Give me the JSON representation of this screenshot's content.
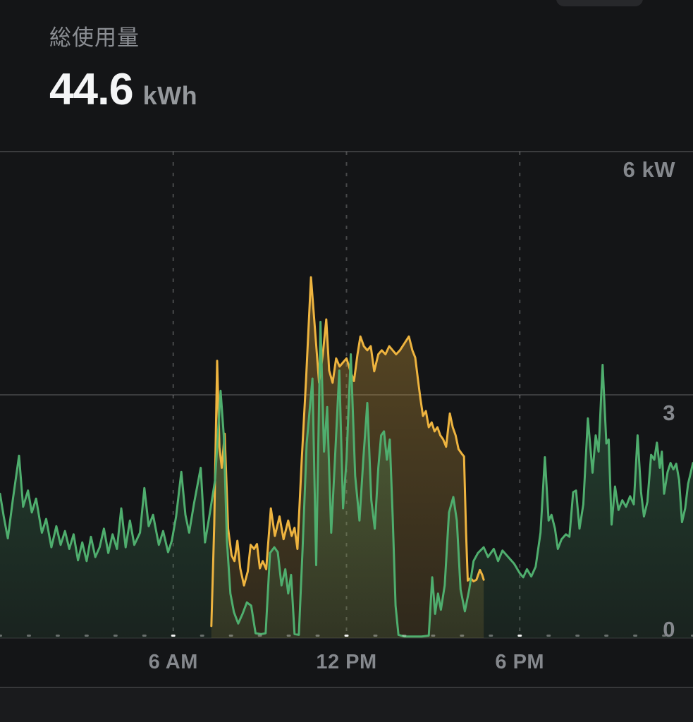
{
  "header": {
    "title": "総使用量",
    "value": "44.6",
    "unit": "kWh"
  },
  "style": {
    "background": "#141517",
    "footer_background": "#1a1b1d",
    "label_color": "#85888d",
    "grid_solid_color": "rgba(255,255,255,0.17)",
    "grid_zero_color": "rgba(255,255,255,0.08)",
    "grid_dashed_color": "rgba(255,255,255,0.22)",
    "tick_minor_color": "rgba(255,255,255,0.35)",
    "tick_major_color": "rgba(255,255,255,0.95)"
  },
  "chart_data": {
    "type": "area",
    "title": "総使用量",
    "total_value": "44.6 kWh",
    "xlabel": "",
    "ylabel": "kW",
    "x_axis": {
      "range_hours": [
        0,
        24
      ],
      "minor_tick_every_hours": 1,
      "tick_labels": [
        {
          "hour": 6,
          "label": "6 AM"
        },
        {
          "hour": 12,
          "label": "12 PM"
        },
        {
          "hour": 18,
          "label": "6 PM"
        }
      ]
    },
    "y_axis": {
      "unit": "kW",
      "range": [
        0,
        6
      ],
      "ticks": [
        {
          "value": 6,
          "label": "6 kW"
        },
        {
          "value": 3,
          "label": "3"
        },
        {
          "value": 0,
          "label": "0"
        }
      ]
    },
    "grid": true,
    "legend": "none",
    "series": [
      {
        "id": "yellow",
        "name": "yellow-production-series",
        "color": "#eeb43f",
        "points": [
          [
            7.32,
            0.15
          ],
          [
            7.42,
            1.4
          ],
          [
            7.52,
            3.42
          ],
          [
            7.6,
            2.35
          ],
          [
            7.68,
            2.1
          ],
          [
            7.78,
            2.52
          ],
          [
            7.9,
            1.35
          ],
          [
            8.02,
            1.02
          ],
          [
            8.12,
            0.95
          ],
          [
            8.22,
            1.2
          ],
          [
            8.32,
            0.86
          ],
          [
            8.45,
            0.65
          ],
          [
            8.58,
            0.82
          ],
          [
            8.68,
            1.15
          ],
          [
            8.8,
            1.1
          ],
          [
            8.9,
            1.16
          ],
          [
            9.0,
            0.86
          ],
          [
            9.1,
            0.95
          ],
          [
            9.22,
            0.85
          ],
          [
            9.38,
            1.6
          ],
          [
            9.52,
            1.26
          ],
          [
            9.68,
            1.5
          ],
          [
            9.82,
            1.22
          ],
          [
            9.98,
            1.45
          ],
          [
            10.1,
            1.26
          ],
          [
            10.2,
            1.36
          ],
          [
            10.3,
            1.1
          ],
          [
            10.45,
            2.2
          ],
          [
            10.6,
            3.2
          ],
          [
            10.77,
            4.45
          ],
          [
            10.92,
            3.75
          ],
          [
            11.05,
            3.15
          ],
          [
            11.18,
            3.5
          ],
          [
            11.3,
            3.93
          ],
          [
            11.4,
            3.3
          ],
          [
            11.52,
            3.15
          ],
          [
            11.64,
            3.45
          ],
          [
            11.76,
            3.35
          ],
          [
            11.88,
            3.4
          ],
          [
            12.0,
            3.45
          ],
          [
            12.13,
            3.3
          ],
          [
            12.26,
            3.17
          ],
          [
            12.38,
            3.5
          ],
          [
            12.48,
            3.72
          ],
          [
            12.6,
            3.6
          ],
          [
            12.72,
            3.55
          ],
          [
            12.84,
            3.6
          ],
          [
            12.96,
            3.29
          ],
          [
            13.1,
            3.5
          ],
          [
            13.22,
            3.55
          ],
          [
            13.35,
            3.5
          ],
          [
            13.48,
            3.6
          ],
          [
            13.6,
            3.55
          ],
          [
            13.72,
            3.5
          ],
          [
            13.85,
            3.55
          ],
          [
            13.98,
            3.62
          ],
          [
            14.16,
            3.72
          ],
          [
            14.28,
            3.55
          ],
          [
            14.38,
            3.46
          ],
          [
            14.47,
            3.2
          ],
          [
            14.56,
            2.95
          ],
          [
            14.65,
            2.74
          ],
          [
            14.75,
            2.8
          ],
          [
            14.85,
            2.6
          ],
          [
            14.95,
            2.66
          ],
          [
            15.05,
            2.55
          ],
          [
            15.15,
            2.6
          ],
          [
            15.25,
            2.5
          ],
          [
            15.35,
            2.45
          ],
          [
            15.45,
            2.36
          ],
          [
            15.58,
            2.77
          ],
          [
            15.68,
            2.6
          ],
          [
            15.78,
            2.5
          ],
          [
            15.88,
            2.33
          ],
          [
            15.98,
            2.28
          ],
          [
            16.07,
            2.24
          ],
          [
            16.14,
            1.3
          ],
          [
            16.2,
            0.71
          ],
          [
            16.3,
            0.74
          ],
          [
            16.4,
            0.7
          ],
          [
            16.5,
            0.72
          ],
          [
            16.62,
            0.84
          ],
          [
            16.7,
            0.78
          ],
          [
            16.75,
            0.72
          ]
        ]
      },
      {
        "id": "green",
        "name": "green-usage-series",
        "color": "#4fae6e",
        "points": [
          [
            0,
            1.78
          ],
          [
            0.13,
            1.5
          ],
          [
            0.27,
            1.23
          ],
          [
            0.45,
            1.72
          ],
          [
            0.66,
            2.25
          ],
          [
            0.8,
            1.62
          ],
          [
            0.97,
            1.82
          ],
          [
            1.1,
            1.55
          ],
          [
            1.25,
            1.72
          ],
          [
            1.45,
            1.3
          ],
          [
            1.6,
            1.47
          ],
          [
            1.78,
            1.12
          ],
          [
            1.95,
            1.38
          ],
          [
            2.1,
            1.15
          ],
          [
            2.25,
            1.32
          ],
          [
            2.4,
            1.1
          ],
          [
            2.55,
            1.28
          ],
          [
            2.7,
            0.96
          ],
          [
            2.85,
            1.18
          ],
          [
            3.0,
            0.95
          ],
          [
            3.15,
            1.25
          ],
          [
            3.3,
            1.0
          ],
          [
            3.45,
            1.12
          ],
          [
            3.6,
            1.35
          ],
          [
            3.75,
            1.05
          ],
          [
            3.9,
            1.28
          ],
          [
            4.05,
            1.1
          ],
          [
            4.2,
            1.6
          ],
          [
            4.35,
            1.12
          ],
          [
            4.5,
            1.45
          ],
          [
            4.65,
            1.15
          ],
          [
            4.85,
            1.3
          ],
          [
            5.0,
            1.85
          ],
          [
            5.15,
            1.38
          ],
          [
            5.3,
            1.52
          ],
          [
            5.5,
            1.15
          ],
          [
            5.65,
            1.32
          ],
          [
            5.82,
            1.06
          ],
          [
            5.95,
            1.2
          ],
          [
            6.1,
            1.5
          ],
          [
            6.28,
            2.05
          ],
          [
            6.42,
            1.52
          ],
          [
            6.55,
            1.3
          ],
          [
            6.72,
            1.66
          ],
          [
            6.95,
            2.1
          ],
          [
            7.1,
            1.18
          ],
          [
            7.25,
            1.5
          ],
          [
            7.45,
            1.95
          ],
          [
            7.64,
            3.05
          ],
          [
            7.75,
            2.5
          ],
          [
            7.86,
            1.2
          ],
          [
            7.98,
            0.55
          ],
          [
            8.1,
            0.32
          ],
          [
            8.25,
            0.18
          ],
          [
            8.4,
            0.3
          ],
          [
            8.55,
            0.44
          ],
          [
            8.7,
            0.4
          ],
          [
            8.85,
            0.06
          ],
          [
            9.05,
            0.05
          ],
          [
            9.2,
            0.06
          ],
          [
            9.35,
            1.05
          ],
          [
            9.5,
            1.12
          ],
          [
            9.62,
            1.06
          ],
          [
            9.75,
            0.65
          ],
          [
            9.88,
            0.85
          ],
          [
            9.98,
            0.55
          ],
          [
            10.08,
            0.78
          ],
          [
            10.2,
            0.05
          ],
          [
            10.35,
            0.04
          ],
          [
            10.48,
            1.1
          ],
          [
            10.62,
            2.4
          ],
          [
            10.82,
            3.2
          ],
          [
            10.95,
            0.9
          ],
          [
            11.1,
            3.9
          ],
          [
            11.22,
            2.3
          ],
          [
            11.33,
            2.85
          ],
          [
            11.47,
            1.3
          ],
          [
            11.6,
            2.2
          ],
          [
            11.75,
            3.3
          ],
          [
            11.88,
            1.6
          ],
          [
            12.0,
            2.2
          ],
          [
            12.15,
            3.5
          ],
          [
            12.3,
            2.0
          ],
          [
            12.45,
            1.45
          ],
          [
            12.58,
            2.2
          ],
          [
            12.72,
            2.9
          ],
          [
            12.86,
            1.7
          ],
          [
            12.98,
            1.35
          ],
          [
            13.1,
            2.1
          ],
          [
            13.2,
            2.5
          ],
          [
            13.3,
            2.55
          ],
          [
            13.4,
            2.2
          ],
          [
            13.5,
            2.45
          ],
          [
            13.6,
            1.5
          ],
          [
            13.7,
            0.4
          ],
          [
            13.8,
            0.04
          ],
          [
            14.0,
            0.02
          ],
          [
            14.3,
            0.02
          ],
          [
            14.6,
            0.02
          ],
          [
            14.85,
            0.03
          ],
          [
            14.97,
            0.75
          ],
          [
            15.07,
            0.3
          ],
          [
            15.17,
            0.55
          ],
          [
            15.27,
            0.35
          ],
          [
            15.4,
            0.65
          ],
          [
            15.55,
            1.55
          ],
          [
            15.7,
            1.74
          ],
          [
            15.82,
            1.45
          ],
          [
            15.95,
            0.6
          ],
          [
            16.1,
            0.33
          ],
          [
            16.25,
            0.6
          ],
          [
            16.4,
            0.95
          ],
          [
            16.55,
            1.05
          ],
          [
            16.75,
            1.12
          ],
          [
            16.9,
            1.0
          ],
          [
            17.1,
            1.1
          ],
          [
            17.25,
            0.95
          ],
          [
            17.4,
            1.08
          ],
          [
            17.6,
            1.0
          ],
          [
            17.8,
            0.92
          ],
          [
            18.0,
            0.8
          ],
          [
            18.12,
            0.75
          ],
          [
            18.25,
            0.85
          ],
          [
            18.4,
            0.76
          ],
          [
            18.55,
            0.88
          ],
          [
            18.72,
            1.3
          ],
          [
            18.87,
            2.23
          ],
          [
            19.0,
            1.45
          ],
          [
            19.1,
            1.52
          ],
          [
            19.22,
            1.35
          ],
          [
            19.32,
            1.1
          ],
          [
            19.45,
            1.22
          ],
          [
            19.6,
            1.28
          ],
          [
            19.72,
            1.25
          ],
          [
            19.85,
            1.8
          ],
          [
            19.95,
            1.82
          ],
          [
            20.07,
            1.35
          ],
          [
            20.2,
            1.65
          ],
          [
            20.36,
            2.71
          ],
          [
            20.52,
            2.04
          ],
          [
            20.63,
            2.5
          ],
          [
            20.73,
            2.3
          ],
          [
            20.87,
            3.37
          ],
          [
            21.0,
            2.4
          ],
          [
            21.08,
            2.45
          ],
          [
            21.18,
            1.4
          ],
          [
            21.3,
            1.87
          ],
          [
            21.42,
            1.58
          ],
          [
            21.55,
            1.7
          ],
          [
            21.68,
            1.62
          ],
          [
            21.82,
            1.75
          ],
          [
            21.95,
            1.65
          ],
          [
            22.08,
            2.5
          ],
          [
            22.2,
            1.8
          ],
          [
            22.3,
            1.5
          ],
          [
            22.42,
            1.68
          ],
          [
            22.55,
            2.26
          ],
          [
            22.66,
            2.2
          ],
          [
            22.75,
            2.41
          ],
          [
            22.85,
            2.1
          ],
          [
            22.92,
            2.3
          ],
          [
            23.0,
            1.78
          ],
          [
            23.12,
            2.05
          ],
          [
            23.22,
            2.16
          ],
          [
            23.32,
            2.08
          ],
          [
            23.42,
            2.15
          ],
          [
            23.52,
            1.95
          ],
          [
            23.62,
            1.43
          ],
          [
            23.73,
            1.6
          ],
          [
            23.83,
            1.9
          ],
          [
            24,
            2.16
          ]
        ]
      }
    ]
  }
}
